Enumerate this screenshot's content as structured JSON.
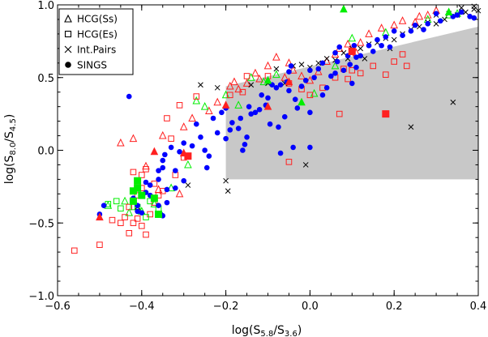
{
  "chart_data": {
    "type": "scatter",
    "title": "",
    "xlabel": {
      "prefix": "log(S",
      "sub1": "5.8",
      "mid": "/S",
      "sub2": "3.6",
      "suffix": ")"
    },
    "ylabel": {
      "prefix": "log(S",
      "sub1": "8.0",
      "mid": "/S",
      "sub2": "4.5",
      "suffix": ")"
    },
    "xlim": [
      -0.6,
      0.4
    ],
    "ylim": [
      -1.0,
      1.0
    ],
    "xticks": [
      -0.6,
      -0.4,
      -0.2,
      0.0,
      0.2,
      0.4
    ],
    "xtick_labels": [
      "−0.6",
      "−0.4",
      "−0.2",
      "0.0",
      "0.2",
      "0.4"
    ],
    "yticks": [
      -1.0,
      -0.5,
      0.0,
      0.5,
      1.0
    ],
    "ytick_labels": [
      "−1.0",
      "−0.5",
      "0.0",
      "0.5",
      "1.0"
    ],
    "grid": false,
    "legend_position": "top-left",
    "legend": [
      {
        "label": "HCG(Ss)",
        "marker": "triangle-open"
      },
      {
        "label": "HCG(Es)",
        "marker": "square-open"
      },
      {
        "label": "Int.Pairs",
        "marker": "cross"
      },
      {
        "label": "SINGS",
        "marker": "circle-filled"
      }
    ],
    "colors": {
      "red": "#ff2020",
      "green": "#00ee00",
      "blue": "#0000ff",
      "black": "#000000",
      "region": "#c8c8c8"
    },
    "shaded_region": [
      [
        -0.2,
        -0.2
      ],
      [
        -0.2,
        0.44
      ],
      [
        0.4,
        0.85
      ],
      [
        0.4,
        -0.2
      ]
    ],
    "series": [
      {
        "marker": "circle-filled",
        "color": "blue",
        "points": [
          [
            -0.5,
            -0.44
          ],
          [
            -0.49,
            -0.38
          ],
          [
            -0.42,
            -0.33
          ],
          [
            -0.41,
            -0.38
          ],
          [
            -0.41,
            -0.42
          ],
          [
            -0.4,
            -0.43
          ],
          [
            -0.39,
            -0.29
          ],
          [
            -0.39,
            -0.22
          ],
          [
            -0.38,
            -0.24
          ],
          [
            -0.36,
            -0.38
          ],
          [
            -0.355,
            -0.44
          ],
          [
            -0.35,
            -0.45
          ],
          [
            -0.36,
            -0.2
          ],
          [
            -0.36,
            -0.14
          ],
          [
            -0.35,
            -0.07
          ],
          [
            -0.35,
            -0.12
          ],
          [
            -0.34,
            -0.27
          ],
          [
            -0.34,
            -0.36
          ],
          [
            -0.345,
            -0.03
          ],
          [
            -0.33,
            0.02
          ],
          [
            -0.32,
            -0.14
          ],
          [
            -0.32,
            -0.26
          ],
          [
            -0.31,
            -0.01
          ],
          [
            -0.3,
            0.05
          ],
          [
            -0.3,
            -0.21
          ],
          [
            -0.28,
            0.03
          ],
          [
            -0.26,
            0.09
          ],
          [
            -0.25,
            0.0
          ],
          [
            -0.24,
            -0.04
          ],
          [
            -0.245,
            -0.12
          ],
          [
            -0.23,
            0.22
          ],
          [
            -0.22,
            0.12
          ],
          [
            -0.21,
            0.26
          ],
          [
            -0.2,
            0.29
          ],
          [
            -0.19,
            0.14
          ],
          [
            -0.185,
            0.19
          ],
          [
            -0.17,
            0.15
          ],
          [
            -0.165,
            0.22
          ],
          [
            -0.155,
            0.04
          ],
          [
            -0.15,
            0.09
          ],
          [
            -0.145,
            0.3
          ],
          [
            -0.14,
            0.25
          ],
          [
            -0.13,
            0.26
          ],
          [
            -0.12,
            0.28
          ],
          [
            -0.115,
            0.38
          ],
          [
            -0.105,
            0.31
          ],
          [
            -0.1,
            0.36
          ],
          [
            -0.095,
            0.18
          ],
          [
            -0.09,
            0.45
          ],
          [
            -0.08,
            0.43
          ],
          [
            -0.075,
            0.16
          ],
          [
            -0.07,
            0.45
          ],
          [
            -0.06,
            0.23
          ],
          [
            -0.055,
            0.47
          ],
          [
            -0.05,
            0.54
          ],
          [
            -0.045,
            0.58
          ],
          [
            -0.04,
            0.02
          ],
          [
            -0.035,
            0.35
          ],
          [
            -0.03,
            0.29
          ],
          [
            -0.02,
            0.44
          ],
          [
            -0.01,
            0.48
          ],
          [
            0.0,
            0.26
          ],
          [
            0.0,
            0.55
          ],
          [
            0.01,
            0.5
          ],
          [
            0.02,
            0.56
          ],
          [
            0.03,
            0.6
          ],
          [
            0.04,
            0.43
          ],
          [
            0.05,
            0.51
          ],
          [
            0.06,
            0.67
          ],
          [
            0.065,
            0.61
          ],
          [
            0.07,
            0.71
          ],
          [
            0.08,
            0.55
          ],
          [
            0.09,
            0.65
          ],
          [
            0.095,
            0.59
          ],
          [
            0.1,
            0.46
          ],
          [
            0.105,
            0.72
          ],
          [
            0.11,
            0.57
          ],
          [
            0.12,
            0.65
          ],
          [
            0.15,
            0.68
          ],
          [
            0.17,
            0.72
          ],
          [
            0.18,
            0.78
          ],
          [
            0.19,
            0.71
          ],
          [
            0.2,
            0.82
          ],
          [
            0.22,
            0.79
          ],
          [
            0.24,
            0.82
          ],
          [
            0.27,
            0.83
          ],
          [
            0.28,
            0.87
          ],
          [
            0.31,
            0.89
          ],
          [
            0.34,
            0.92
          ],
          [
            0.35,
            0.93
          ],
          [
            0.38,
            0.92
          ],
          [
            0.39,
            0.91
          ],
          [
            0.36,
            0.95
          ],
          [
            -0.43,
            0.37
          ],
          [
            -0.27,
            0.18
          ],
          [
            -0.07,
            -0.02
          ],
          [
            -0.16,
            0.0
          ],
          [
            0.0,
            0.02
          ],
          [
            -0.05,
            0.41
          ],
          [
            0.03,
            0.38
          ],
          [
            0.11,
            0.64
          ],
          [
            0.14,
            0.72
          ],
          [
            0.25,
            0.86
          ],
          [
            0.3,
            0.94
          ],
          [
            -0.38,
            -0.31
          ],
          [
            -0.2,
            0.08
          ],
          [
            0.06,
            0.53
          ],
          [
            0.16,
            0.76
          ]
        ]
      },
      {
        "marker": "cross",
        "color": "black",
        "points": [
          [
            -0.41,
            -0.39
          ],
          [
            -0.29,
            -0.24
          ],
          [
            -0.2,
            -0.21
          ],
          [
            -0.195,
            -0.28
          ],
          [
            -0.26,
            0.45
          ],
          [
            -0.14,
            0.45
          ],
          [
            -0.1,
            0.46
          ],
          [
            -0.06,
            0.46
          ],
          [
            -0.04,
            0.58
          ],
          [
            -0.02,
            0.59
          ],
          [
            0.0,
            0.57
          ],
          [
            0.02,
            0.6
          ],
          [
            0.04,
            0.63
          ],
          [
            0.06,
            0.62
          ],
          [
            0.08,
            0.67
          ],
          [
            0.09,
            0.63
          ],
          [
            0.1,
            0.7
          ],
          [
            0.12,
            0.7
          ],
          [
            0.14,
            0.73
          ],
          [
            0.16,
            0.74
          ],
          [
            0.18,
            0.77
          ],
          [
            0.2,
            0.76
          ],
          [
            0.22,
            0.8
          ],
          [
            0.24,
            0.83
          ],
          [
            0.26,
            0.85
          ],
          [
            0.28,
            0.88
          ],
          [
            0.3,
            0.87
          ],
          [
            0.32,
            0.9
          ],
          [
            0.33,
            0.94
          ],
          [
            0.35,
            0.93
          ],
          [
            0.37,
            0.95
          ],
          [
            0.39,
            0.97
          ],
          [
            0.4,
            0.96
          ],
          [
            0.34,
            0.33
          ],
          [
            0.24,
            0.16
          ],
          [
            0.36,
            0.98
          ],
          [
            0.39,
            0.99
          ],
          [
            -0.08,
            0.56
          ],
          [
            0.13,
            0.63
          ],
          [
            0.3,
            0.93
          ],
          [
            -0.01,
            -0.1
          ],
          [
            -0.22,
            0.43
          ],
          [
            0.19,
            0.7
          ]
        ]
      },
      {
        "marker": "triangle-open",
        "color": "red",
        "points": [
          [
            -0.45,
            0.05
          ],
          [
            -0.42,
            0.08
          ],
          [
            -0.35,
            0.1
          ],
          [
            -0.3,
            0.16
          ],
          [
            -0.28,
            0.22
          ],
          [
            -0.22,
            0.33
          ],
          [
            -0.19,
            0.44
          ],
          [
            -0.18,
            0.47
          ],
          [
            -0.15,
            0.46
          ],
          [
            -0.13,
            0.53
          ],
          [
            -0.1,
            0.58
          ],
          [
            -0.08,
            0.64
          ],
          [
            -0.06,
            0.5
          ],
          [
            -0.04,
            0.55
          ],
          [
            -0.02,
            0.51
          ],
          [
            0.0,
            0.48
          ],
          [
            0.02,
            0.54
          ],
          [
            0.04,
            0.61
          ],
          [
            0.06,
            0.66
          ],
          [
            0.07,
            0.7
          ],
          [
            0.09,
            0.73
          ],
          [
            0.12,
            0.74
          ],
          [
            0.14,
            0.8
          ],
          [
            0.17,
            0.84
          ],
          [
            0.2,
            0.86
          ],
          [
            0.22,
            0.89
          ],
          [
            0.26,
            0.92
          ],
          [
            0.28,
            0.93
          ],
          [
            0.3,
            0.96
          ],
          [
            -0.39,
            -0.11
          ],
          [
            -0.36,
            -0.27
          ],
          [
            -0.31,
            -0.3
          ],
          [
            -0.24,
            0.27
          ],
          [
            -0.17,
            0.42
          ],
          [
            -0.12,
            0.49
          ],
          [
            -0.05,
            0.6
          ],
          [
            0.11,
            0.67
          ],
          [
            0.25,
            0.88
          ]
        ]
      },
      {
        "marker": "triangle-open",
        "color": "green",
        "points": [
          [
            -0.48,
            -0.38
          ],
          [
            -0.44,
            -0.35
          ],
          [
            -0.43,
            -0.43
          ],
          [
            -0.4,
            -0.42
          ],
          [
            -0.37,
            -0.37
          ],
          [
            -0.33,
            -0.26
          ],
          [
            -0.29,
            -0.1
          ],
          [
            -0.27,
            0.34
          ],
          [
            -0.25,
            0.3
          ],
          [
            -0.2,
            0.38
          ],
          [
            -0.17,
            0.31
          ],
          [
            -0.14,
            0.5
          ],
          [
            -0.11,
            0.47
          ],
          [
            -0.08,
            0.52
          ],
          [
            0.01,
            0.39
          ],
          [
            0.06,
            0.58
          ],
          [
            0.1,
            0.77
          ],
          [
            0.18,
            0.81
          ],
          [
            0.28,
            0.9
          ],
          [
            0.33,
            0.93
          ],
          [
            0.35,
            0.94
          ]
        ]
      },
      {
        "marker": "triangle-filled",
        "color": "red",
        "points": [
          [
            -0.5,
            -0.46
          ],
          [
            -0.37,
            -0.01
          ],
          [
            -0.3,
            -0.02
          ],
          [
            -0.2,
            0.31
          ],
          [
            -0.1,
            0.3
          ],
          [
            -0.05,
            0.47
          ]
        ]
      },
      {
        "marker": "triangle-filled",
        "color": "green",
        "points": [
          [
            -0.1,
            0.48
          ],
          [
            -0.02,
            0.33
          ],
          [
            0.08,
            0.97
          ],
          [
            0.33,
            0.95
          ]
        ]
      },
      {
        "marker": "square-open",
        "color": "red",
        "points": [
          [
            -0.56,
            -0.69
          ],
          [
            -0.5,
            -0.65
          ],
          [
            -0.47,
            -0.48
          ],
          [
            -0.45,
            -0.5
          ],
          [
            -0.44,
            -0.46
          ],
          [
            -0.43,
            -0.39
          ],
          [
            -0.43,
            -0.57
          ],
          [
            -0.42,
            -0.5
          ],
          [
            -0.41,
            -0.47
          ],
          [
            -0.4,
            -0.52
          ],
          [
            -0.39,
            -0.58
          ],
          [
            -0.38,
            -0.44
          ],
          [
            -0.37,
            -0.36
          ],
          [
            -0.36,
            -0.31
          ],
          [
            -0.41,
            -0.31
          ],
          [
            -0.4,
            -0.26
          ],
          [
            -0.4,
            -0.17
          ],
          [
            -0.41,
            -0.22
          ],
          [
            -0.39,
            -0.13
          ],
          [
            -0.42,
            -0.15
          ],
          [
            -0.37,
            -0.23
          ],
          [
            -0.32,
            -0.17
          ],
          [
            -0.3,
            -0.05
          ],
          [
            -0.33,
            0.08
          ],
          [
            -0.31,
            0.31
          ],
          [
            -0.34,
            0.22
          ],
          [
            -0.27,
            0.37
          ],
          [
            -0.19,
            0.38
          ],
          [
            -0.16,
            0.4
          ],
          [
            -0.15,
            0.51
          ],
          [
            -0.1,
            0.51
          ],
          [
            -0.05,
            0.46
          ],
          [
            -0.02,
            0.42
          ],
          [
            0.0,
            0.38
          ],
          [
            0.03,
            0.43
          ],
          [
            0.06,
            0.5
          ],
          [
            0.09,
            0.49
          ],
          [
            0.12,
            0.53
          ],
          [
            0.15,
            0.58
          ],
          [
            0.2,
            0.61
          ],
          [
            0.22,
            0.66
          ],
          [
            0.1,
            0.55
          ],
          [
            0.08,
            0.56
          ],
          [
            -0.05,
            -0.08
          ],
          [
            0.07,
            0.25
          ],
          [
            0.18,
            0.52
          ],
          [
            0.23,
            0.58
          ],
          [
            -0.35,
            -0.28
          ]
        ]
      },
      {
        "marker": "square-open",
        "color": "green",
        "points": [
          [
            -0.48,
            -0.37
          ],
          [
            -0.46,
            -0.35
          ],
          [
            -0.45,
            -0.4
          ],
          [
            -0.42,
            -0.39
          ],
          [
            -0.38,
            -0.35
          ],
          [
            -0.36,
            -0.4
          ],
          [
            -0.41,
            -0.39
          ],
          [
            -0.39,
            -0.46
          ]
        ]
      },
      {
        "marker": "square-filled",
        "color": "green",
        "points": [
          [
            -0.41,
            -0.21
          ],
          [
            -0.41,
            -0.26
          ],
          [
            -0.4,
            -0.31
          ],
          [
            -0.37,
            -0.33
          ],
          [
            -0.42,
            -0.35
          ],
          [
            -0.36,
            -0.44
          ],
          [
            -0.42,
            -0.28
          ]
        ]
      },
      {
        "marker": "square-filled",
        "color": "red",
        "points": [
          [
            -0.29,
            -0.04
          ],
          [
            0.1,
            0.68
          ],
          [
            0.18,
            0.25
          ]
        ]
      }
    ]
  }
}
